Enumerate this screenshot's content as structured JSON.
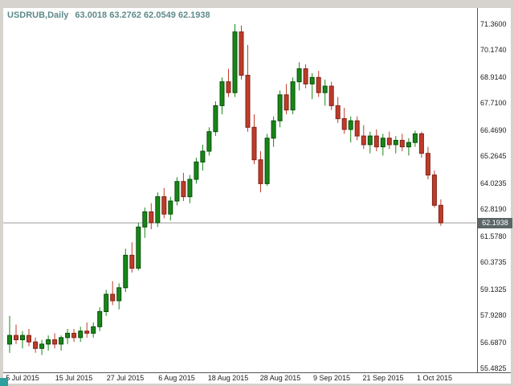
{
  "window": {
    "symbol_timeframe": "USDRUB,Daily",
    "ohlc_text": "63.0018 63.2762 62.0549 62.1938"
  },
  "colors": {
    "bull": "#178717",
    "bull_border": "#0b4d0b",
    "bear": "#c03b2a",
    "bear_border": "#7e2417",
    "price_line": "#9a9a9a",
    "axis_line": "#555555",
    "price_tag_bg": "#5c6668",
    "price_tag_text": "#ffffff",
    "background": "#ffffff",
    "frame": "#d6d3ce"
  },
  "current_price": {
    "value": "62.1938"
  },
  "y_axis": {
    "labels": [
      "71.3600",
      "70.1740",
      "68.9140",
      "67.7100",
      "66.4690",
      "65.2645",
      "64.0235",
      "62.8190",
      "61.5780",
      "60.3735",
      "59.1325",
      "57.9280",
      "56.6870",
      "55.4825"
    ]
  },
  "x_axis": {
    "labels": [
      {
        "text": "5 Jul 2015",
        "index": 2
      },
      {
        "text": "15 Jul 2015",
        "index": 10
      },
      {
        "text": "27 Jul 2015",
        "index": 18
      },
      {
        "text": "6 Aug 2015",
        "index": 26
      },
      {
        "text": "18 Aug 2015",
        "index": 34
      },
      {
        "text": "28 Aug 2015",
        "index": 42
      },
      {
        "text": "9 Sep 2015",
        "index": 50
      },
      {
        "text": "21 Sep 2015",
        "index": 58
      },
      {
        "text": "1 Oct 2015",
        "index": 66
      }
    ]
  },
  "chart_data": {
    "type": "candlestick",
    "title": "USDRUB Daily",
    "symbol": "USDRUB",
    "timeframe": "Daily",
    "current_bar": {
      "open": 63.0018,
      "high": 63.2762,
      "low": 62.0549,
      "close": 62.1938
    },
    "y_min": 55.4825,
    "y_max": 71.36,
    "x_range": [
      "5 Jul 2015",
      "1 Oct 2015"
    ],
    "legend": "none",
    "grid": "off",
    "candles_ohlc": [
      [
        56.6,
        57.9,
        56.2,
        57.0
      ],
      [
        57.0,
        57.5,
        56.6,
        56.8
      ],
      [
        56.8,
        57.2,
        56.4,
        57.0
      ],
      [
        57.0,
        57.3,
        56.5,
        56.7
      ],
      [
        56.7,
        56.9,
        56.2,
        56.4
      ],
      [
        56.4,
        56.8,
        56.1,
        56.6
      ],
      [
        56.6,
        57.0,
        56.3,
        56.8
      ],
      [
        56.8,
        57.1,
        56.4,
        56.6
      ],
      [
        56.6,
        57.0,
        56.3,
        56.9
      ],
      [
        56.9,
        57.3,
        56.6,
        57.1
      ],
      [
        57.1,
        57.3,
        56.7,
        56.9
      ],
      [
        56.9,
        57.4,
        56.7,
        57.2
      ],
      [
        57.2,
        57.6,
        56.9,
        57.1
      ],
      [
        57.1,
        57.6,
        56.9,
        57.4
      ],
      [
        57.4,
        58.3,
        57.2,
        58.1
      ],
      [
        58.1,
        59.1,
        57.9,
        58.9
      ],
      [
        58.9,
        59.5,
        58.4,
        58.6
      ],
      [
        58.6,
        59.4,
        58.2,
        59.2
      ],
      [
        59.2,
        61.0,
        59.0,
        60.7
      ],
      [
        60.7,
        61.3,
        59.9,
        60.1
      ],
      [
        60.1,
        62.2,
        60.0,
        62.0
      ],
      [
        62.0,
        62.9,
        61.5,
        62.7
      ],
      [
        62.7,
        63.1,
        61.9,
        62.2
      ],
      [
        62.2,
        63.6,
        62.0,
        63.4
      ],
      [
        63.4,
        63.8,
        62.4,
        62.6
      ],
      [
        62.6,
        63.4,
        62.3,
        63.2
      ],
      [
        63.2,
        64.3,
        63.0,
        64.1
      ],
      [
        64.1,
        64.5,
        63.2,
        63.4
      ],
      [
        63.4,
        64.4,
        63.1,
        64.2
      ],
      [
        64.2,
        65.2,
        64.0,
        65.0
      ],
      [
        65.0,
        65.8,
        64.6,
        65.5
      ],
      [
        65.5,
        66.6,
        65.3,
        66.4
      ],
      [
        66.4,
        67.8,
        66.2,
        67.6
      ],
      [
        67.6,
        68.9,
        67.2,
        68.7
      ],
      [
        68.7,
        69.3,
        68.0,
        68.2
      ],
      [
        68.2,
        71.36,
        68.0,
        71.0
      ],
      [
        71.0,
        71.3,
        68.8,
        69.0
      ],
      [
        69.0,
        70.4,
        66.4,
        66.6
      ],
      [
        66.6,
        67.2,
        64.9,
        65.1
      ],
      [
        65.1,
        65.5,
        63.6,
        64.0
      ],
      [
        64.0,
        66.3,
        63.9,
        66.1
      ],
      [
        66.1,
        67.1,
        65.7,
        66.9
      ],
      [
        66.9,
        68.3,
        66.6,
        68.1
      ],
      [
        68.1,
        68.6,
        67.2,
        67.4
      ],
      [
        67.4,
        68.9,
        67.2,
        68.7
      ],
      [
        68.7,
        69.6,
        68.3,
        69.3
      ],
      [
        69.3,
        69.5,
        68.4,
        68.6
      ],
      [
        68.6,
        69.1,
        67.9,
        68.9
      ],
      [
        68.9,
        69.2,
        68.0,
        68.2
      ],
      [
        68.2,
        68.8,
        67.6,
        68.5
      ],
      [
        68.5,
        68.7,
        67.4,
        67.6
      ],
      [
        67.6,
        68.0,
        66.8,
        67.0
      ],
      [
        67.0,
        67.5,
        66.3,
        66.5
      ],
      [
        66.5,
        67.1,
        65.9,
        66.9
      ],
      [
        66.9,
        67.1,
        66.0,
        66.2
      ],
      [
        66.2,
        66.7,
        65.6,
        65.8
      ],
      [
        65.8,
        66.4,
        65.4,
        66.2
      ],
      [
        66.2,
        66.5,
        65.5,
        65.7
      ],
      [
        65.7,
        66.3,
        65.3,
        66.1
      ],
      [
        66.1,
        66.4,
        65.6,
        65.8
      ],
      [
        65.8,
        66.2,
        65.4,
        66.0
      ],
      [
        66.0,
        66.3,
        65.5,
        65.7
      ],
      [
        65.7,
        66.1,
        65.3,
        65.9
      ],
      [
        65.9,
        66.45,
        65.7,
        66.3
      ],
      [
        66.3,
        66.4,
        65.2,
        65.4
      ],
      [
        65.4,
        65.7,
        64.2,
        64.4
      ],
      [
        64.4,
        64.6,
        62.9,
        63.0
      ],
      [
        63.0018,
        63.2762,
        62.0549,
        62.1938
      ]
    ]
  }
}
